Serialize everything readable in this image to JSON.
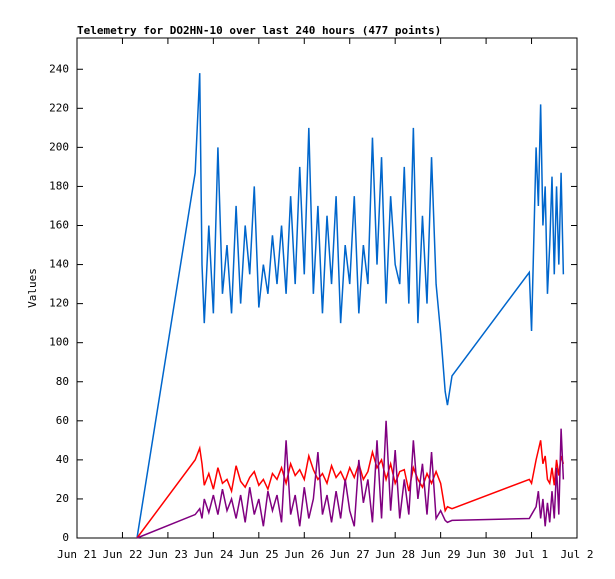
{
  "chart_data": {
    "type": "line",
    "title": "Telemetry for DO2HN-10 over last 240 hours (477 points)",
    "y_label": "Values",
    "x": [
      22.32,
      23.6,
      23.7,
      23.75,
      23.8,
      23.9,
      24.0,
      24.1,
      24.2,
      24.3,
      24.4,
      24.5,
      24.6,
      24.7,
      24.8,
      24.9,
      25.0,
      25.1,
      25.2,
      25.3,
      25.4,
      25.5,
      25.6,
      25.7,
      25.8,
      25.9,
      26.0,
      26.1,
      26.2,
      26.3,
      26.4,
      26.5,
      26.6,
      26.7,
      26.8,
      26.9,
      27.0,
      27.1,
      27.2,
      27.3,
      27.4,
      27.5,
      27.6,
      27.7,
      27.8,
      27.9,
      28.0,
      28.1,
      28.2,
      28.3,
      28.4,
      28.5,
      28.6,
      28.7,
      28.8,
      28.9,
      29.0,
      29.1,
      29.15,
      29.25,
      30.95,
      31.0,
      31.1,
      31.15,
      31.2,
      31.25,
      31.3,
      31.35,
      31.4,
      31.45,
      31.5,
      31.55,
      31.6,
      31.65,
      31.7
    ],
    "series": [
      {
        "color": "#0066cc",
        "values": [
          0,
          187,
          238,
          140,
          110,
          160,
          115,
          200,
          125,
          150,
          115,
          170,
          120,
          160,
          135,
          180,
          118,
          140,
          125,
          155,
          130,
          160,
          125,
          175,
          130,
          190,
          135,
          210,
          125,
          170,
          115,
          165,
          130,
          175,
          110,
          150,
          130,
          175,
          115,
          150,
          130,
          205,
          140,
          195,
          120,
          175,
          140,
          130,
          190,
          120,
          210,
          110,
          165,
          120,
          195,
          130,
          105,
          75,
          68,
          83,
          136,
          106,
          200,
          170,
          222,
          160,
          180,
          125,
          150,
          185,
          135,
          180,
          140,
          187,
          135
        ]
      },
      {
        "color": "#ff0000",
        "values": [
          0,
          40,
          46,
          38,
          27,
          33,
          25,
          36,
          28,
          30,
          24,
          37,
          29,
          26,
          31,
          34,
          27,
          30,
          25,
          33,
          30,
          36,
          28,
          38,
          32,
          35,
          30,
          42,
          35,
          30,
          33,
          28,
          37,
          31,
          34,
          29,
          36,
          31,
          38,
          30,
          34,
          44,
          36,
          40,
          30,
          38,
          28,
          34,
          35,
          24,
          36,
          30,
          26,
          33,
          28,
          34,
          28,
          14,
          16,
          15,
          30,
          28,
          40,
          45,
          50,
          38,
          42,
          30,
          28,
          36,
          27,
          40,
          32,
          42,
          38
        ]
      },
      {
        "color": "#800080",
        "values": [
          0,
          12,
          15,
          10,
          20,
          13,
          22,
          12,
          25,
          14,
          20,
          10,
          22,
          8,
          26,
          12,
          20,
          6,
          24,
          14,
          22,
          8,
          50,
          12,
          22,
          6,
          26,
          10,
          20,
          44,
          12,
          22,
          8,
          24,
          10,
          30,
          14,
          6,
          40,
          18,
          30,
          8,
          50,
          10,
          60,
          14,
          45,
          10,
          30,
          12,
          50,
          20,
          38,
          12,
          44,
          10,
          14,
          9,
          8,
          9,
          10,
          12,
          16,
          24,
          10,
          20,
          6,
          18,
          8,
          24,
          10,
          36,
          12,
          56,
          30
        ]
      }
    ],
    "xlim": [
      21,
      32
    ],
    "xticks": [
      {
        "value": 21,
        "label": "Jun 21"
      },
      {
        "value": 22,
        "label": "Jun 22"
      },
      {
        "value": 23,
        "label": "Jun 23"
      },
      {
        "value": 24,
        "label": "Jun 24"
      },
      {
        "value": 25,
        "label": "Jun 25"
      },
      {
        "value": 26,
        "label": "Jun 26"
      },
      {
        "value": 27,
        "label": "Jun 27"
      },
      {
        "value": 28,
        "label": "Jun 28"
      },
      {
        "value": 29,
        "label": "Jun 29"
      },
      {
        "value": 30,
        "label": "Jun 30"
      },
      {
        "value": 31,
        "label": "Jul 1"
      },
      {
        "value": 32,
        "label": "Jul 2"
      }
    ],
    "ylim": [
      0,
      256
    ],
    "yticks": [
      0,
      20,
      40,
      60,
      80,
      100,
      120,
      140,
      160,
      180,
      200,
      220,
      240
    ]
  }
}
